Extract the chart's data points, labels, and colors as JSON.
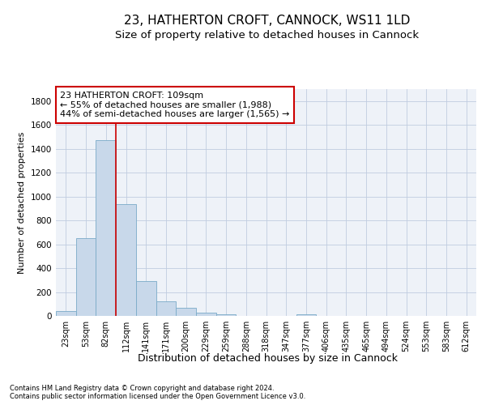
{
  "title1": "23, HATHERTON CROFT, CANNOCK, WS11 1LD",
  "title2": "Size of property relative to detached houses in Cannock",
  "xlabel": "Distribution of detached houses by size in Cannock",
  "ylabel": "Number of detached properties",
  "footer1": "Contains HM Land Registry data © Crown copyright and database right 2024.",
  "footer2": "Contains public sector information licensed under the Open Government Licence v3.0.",
  "annotation_line1": "23 HATHERTON CROFT: 109sqm",
  "annotation_line2": "← 55% of detached houses are smaller (1,988)",
  "annotation_line3": "44% of semi-detached houses are larger (1,565) →",
  "bar_labels": [
    "23sqm",
    "53sqm",
    "82sqm",
    "112sqm",
    "141sqm",
    "171sqm",
    "200sqm",
    "229sqm",
    "259sqm",
    "288sqm",
    "318sqm",
    "347sqm",
    "377sqm",
    "406sqm",
    "435sqm",
    "465sqm",
    "494sqm",
    "524sqm",
    "553sqm",
    "583sqm",
    "612sqm"
  ],
  "bar_values": [
    38,
    650,
    1470,
    935,
    290,
    125,
    65,
    25,
    15,
    0,
    0,
    0,
    12,
    0,
    0,
    0,
    0,
    0,
    0,
    0,
    0
  ],
  "bar_color": "#c8d8ea",
  "bar_edge_color": "#7aaac8",
  "vline_color": "#cc0000",
  "ylim": [
    0,
    1900
  ],
  "yticks": [
    0,
    200,
    400,
    600,
    800,
    1000,
    1200,
    1400,
    1600,
    1800
  ],
  "bg_color": "#eef2f8",
  "grid_color": "#c0cce0",
  "annotation_box_color": "#cc0000",
  "title1_fontsize": 11,
  "title2_fontsize": 9.5,
  "xlabel_fontsize": 9,
  "ylabel_fontsize": 8,
  "tick_fontsize": 7,
  "footer_fontsize": 6,
  "ann_fontsize": 8
}
